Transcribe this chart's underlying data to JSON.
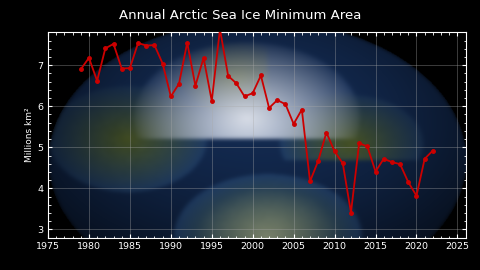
{
  "title": "Annual Arctic Sea Ice Minimum Area",
  "ylabel": "Millions km²",
  "years": [
    1979,
    1980,
    1981,
    1982,
    1983,
    1984,
    1985,
    1986,
    1987,
    1988,
    1989,
    1990,
    1991,
    1992,
    1993,
    1994,
    1995,
    1996,
    1997,
    1998,
    1999,
    2000,
    2001,
    2002,
    2003,
    2004,
    2005,
    2006,
    2007,
    2008,
    2009,
    2010,
    2011,
    2012,
    2013,
    2014,
    2015,
    2016,
    2017,
    2018,
    2019,
    2020,
    2021,
    2022
  ],
  "values": [
    6.9,
    7.18,
    6.62,
    7.41,
    7.52,
    6.92,
    6.93,
    7.54,
    7.48,
    7.49,
    7.04,
    6.24,
    6.55,
    7.55,
    6.5,
    7.18,
    6.13,
    7.88,
    6.74,
    6.56,
    6.24,
    6.32,
    6.75,
    5.96,
    6.15,
    6.05,
    5.57,
    5.92,
    4.17,
    4.67,
    5.36,
    4.9,
    4.61,
    3.41,
    5.1,
    5.02,
    4.41,
    4.72,
    4.64,
    4.59,
    4.15,
    3.82,
    4.72,
    4.92
  ],
  "line_color": "#cc0000",
  "marker_color": "#cc0000",
  "grid_color": "#aaaaaa",
  "bg_color": "#000000",
  "title_color": "#ffffff",
  "ax_text_color": "#ffffff",
  "xlim": [
    1975,
    2026
  ],
  "ylim": [
    2.8,
    7.8
  ],
  "yticks": [
    3,
    4,
    5,
    6,
    7
  ],
  "xticks": [
    1975,
    1980,
    1985,
    1990,
    1995,
    2000,
    2005,
    2010,
    2015,
    2020,
    2025
  ]
}
